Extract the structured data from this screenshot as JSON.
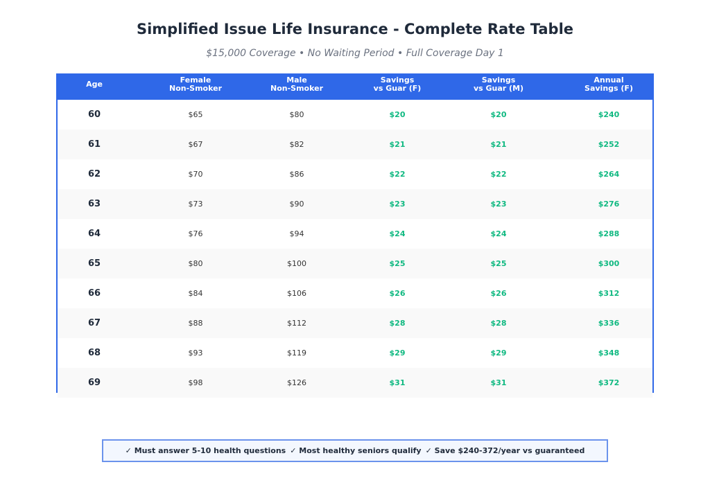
{
  "title": "Simplified Issue Life Insurance - Complete Rate Table",
  "subtitle": "$15,000 Coverage • No Waiting Period • Full Coverage Day 1",
  "headers": [
    [
      "Age"
    ],
    [
      "Female",
      "Non-Smoker"
    ],
    [
      "Male",
      "Non-Smoker"
    ],
    [
      "Savings",
      "vs Guar (F)"
    ],
    [
      "Savings",
      "vs Guar (M)"
    ],
    [
      "Annual",
      "Savings (F)"
    ]
  ],
  "rows": [
    [
      "60",
      "$65",
      "$80",
      "$20",
      "$20",
      "$240"
    ],
    [
      "61",
      "$67",
      "$82",
      "$21",
      "$21",
      "$252"
    ],
    [
      "62",
      "$70",
      "$86",
      "$22",
      "$22",
      "$264"
    ],
    [
      "63",
      "$73",
      "$90",
      "$23",
      "$23",
      "$276"
    ],
    [
      "64",
      "$76",
      "$94",
      "$24",
      "$24",
      "$288"
    ],
    [
      "65",
      "$80",
      "$100",
      "$25",
      "$25",
      "$300"
    ],
    [
      "66",
      "$84",
      "$106",
      "$26",
      "$26",
      "$312"
    ],
    [
      "67",
      "$88",
      "$112",
      "$28",
      "$28",
      "$336"
    ],
    [
      "68",
      "$93",
      "$119",
      "$29",
      "$29",
      "$348"
    ],
    [
      "69",
      "$98",
      "$126",
      "$31",
      "$31",
      "$372"
    ]
  ],
  "footer": [
    "✓ Must answer 5-10 health questions",
    "✓ Most healthy seniors qualify",
    "✓ Save $240-372/year vs guaranteed"
  ],
  "colors": {
    "header": "#2f68e8",
    "savings": "#10b981",
    "title": "#1f2a3a"
  }
}
